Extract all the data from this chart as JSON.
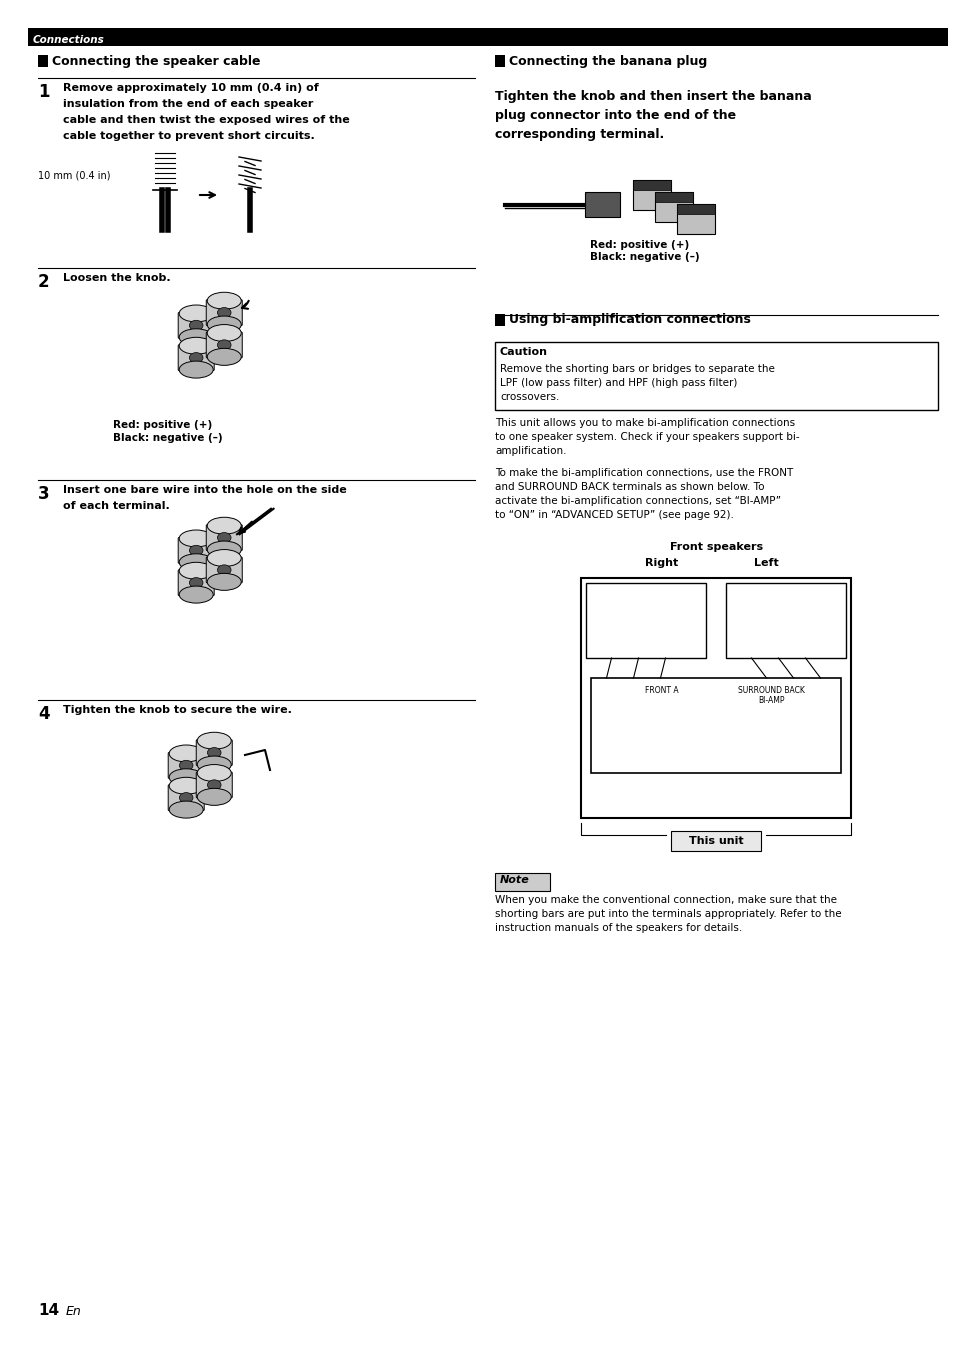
{
  "page_bg": "#ffffff",
  "header_bar_color": "#000000",
  "header_text": "Connections",
  "header_text_color": "#ffffff",
  "sections": {
    "left_title": "Connecting the speaker cable",
    "right_title": "Connecting the banana plug",
    "bi_amp_title": "Using bi-amplification connections"
  },
  "step1_lines": [
    "Remove approximately 10 mm (0.4 in) of",
    "insulation from the end of each speaker",
    "cable and then twist the exposed wires of the",
    "cable together to prevent short circuits."
  ],
  "step1_label": "10 mm (0.4 in)",
  "step2_text": "Loosen the knob.",
  "step2_labels": [
    "Red: positive (+)",
    "Black: negative (–)"
  ],
  "step3_lines": [
    "Insert one bare wire into the hole on the side",
    "of each terminal."
  ],
  "step4_text": "Tighten the knob to secure the wire.",
  "banana_lines": [
    "Tighten the knob and then insert the banana",
    "plug connector into the end of the",
    "corresponding terminal."
  ],
  "banana_labels": [
    "Red: positive (+)",
    "Black: negative (–)"
  ],
  "caution_title": "Caution",
  "caution_lines": [
    "Remove the shorting bars or bridges to separate the",
    "LPF (low pass filter) and HPF (high pass filter)",
    "crossovers."
  ],
  "bi_text1_lines": [
    "This unit allows you to make bi-amplification connections",
    "to one speaker system. Check if your speakers support bi-",
    "amplification."
  ],
  "bi_text2_lines": [
    "To make the bi-amplification connections, use the FRONT",
    "and SURROUND BACK terminals as shown below. To",
    "activate the bi-amplification connections, set “BI-AMP”",
    "to “ON” in “ADVANCED SETUP” (see page 92)."
  ],
  "front_speakers_label": "Front speakers",
  "right_label": "Right",
  "left_label": "Left",
  "this_unit_label": "This unit",
  "note_title": "Note",
  "note_lines": [
    "When you make the conventional connection, make sure that the",
    "shorting bars are put into the terminals appropriately. Refer to the",
    "instruction manuals of the speakers for details."
  ],
  "page_number": "14",
  "page_suffix": "En"
}
